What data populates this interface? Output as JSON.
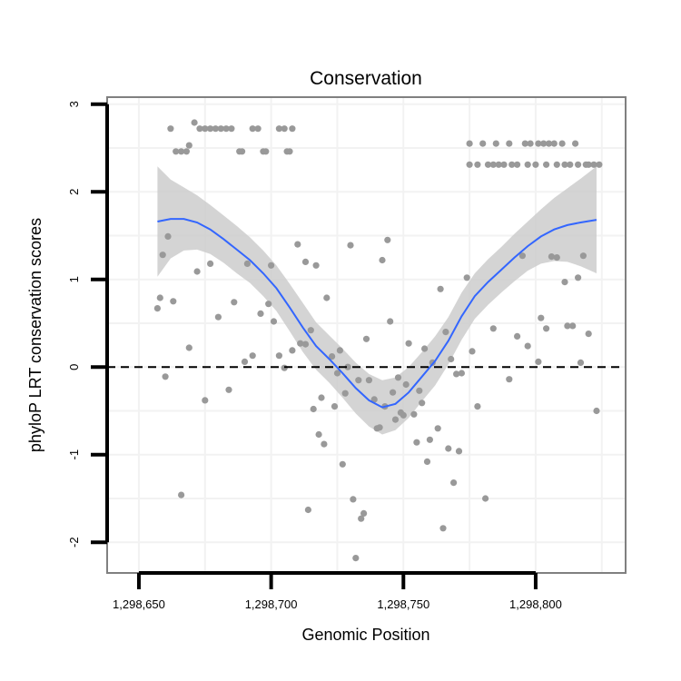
{
  "chart_data": {
    "type": "scatter",
    "title": "Conservation",
    "xlabel": "Genomic Position",
    "ylabel": "phyloP LRT conservation scores",
    "xlim": [
      1298638,
      1298834
    ],
    "ylim": [
      -2.35,
      3.08
    ],
    "x_ticks": [
      1298650,
      1298700,
      1298750,
      1298800
    ],
    "x_tick_labels": [
      "1,298,650",
      "1,298,700",
      "1,298,750",
      "1,298,800"
    ],
    "y_ticks": [
      -2,
      -1,
      0,
      1,
      2,
      3
    ],
    "y_tick_labels": [
      "-2",
      "-1",
      "0",
      "1",
      "2",
      "3"
    ],
    "grid": true,
    "reference_line": {
      "y": 0,
      "style": "dashed"
    },
    "colors": {
      "points": "#999999",
      "smooth_line": "#3366ff",
      "confidence_band": "#cccccc",
      "panel_border": "#808080",
      "grid": "#f2f2f2"
    },
    "points": [
      [
        1298662,
        2.72
      ],
      [
        1298664,
        2.46
      ],
      [
        1298666,
        2.46
      ],
      [
        1298668,
        2.46
      ],
      [
        1298669,
        2.53
      ],
      [
        1298671,
        2.79
      ],
      [
        1298673,
        2.72
      ],
      [
        1298675,
        2.72
      ],
      [
        1298677,
        2.72
      ],
      [
        1298679,
        2.72
      ],
      [
        1298681,
        2.72
      ],
      [
        1298683,
        2.72
      ],
      [
        1298685,
        2.72
      ],
      [
        1298688,
        2.46
      ],
      [
        1298689,
        2.46
      ],
      [
        1298693,
        2.72
      ],
      [
        1298695,
        2.72
      ],
      [
        1298697,
        2.46
      ],
      [
        1298698,
        2.46
      ],
      [
        1298703,
        2.72
      ],
      [
        1298705,
        2.72
      ],
      [
        1298706,
        2.46
      ],
      [
        1298707,
        2.46
      ],
      [
        1298708,
        2.72
      ],
      [
        1298775,
        2.55
      ],
      [
        1298775,
        2.31
      ],
      [
        1298778,
        2.31
      ],
      [
        1298780,
        2.55
      ],
      [
        1298782,
        2.31
      ],
      [
        1298784,
        2.31
      ],
      [
        1298785,
        2.55
      ],
      [
        1298786,
        2.31
      ],
      [
        1298788,
        2.31
      ],
      [
        1298790,
        2.55
      ],
      [
        1298791,
        2.31
      ],
      [
        1298793,
        2.31
      ],
      [
        1298796,
        2.55
      ],
      [
        1298797,
        2.31
      ],
      [
        1298798,
        2.55
      ],
      [
        1298800,
        2.31
      ],
      [
        1298801,
        2.55
      ],
      [
        1298803,
        2.55
      ],
      [
        1298804,
        2.31
      ],
      [
        1298805,
        2.55
      ],
      [
        1298807,
        2.55
      ],
      [
        1298808,
        2.31
      ],
      [
        1298810,
        2.55
      ],
      [
        1298811,
        2.31
      ],
      [
        1298813,
        2.31
      ],
      [
        1298815,
        2.55
      ],
      [
        1298816,
        2.31
      ],
      [
        1298819,
        2.31
      ],
      [
        1298820,
        2.31
      ],
      [
        1298822,
        2.31
      ],
      [
        1298824,
        2.31
      ],
      [
        1298657,
        0.67
      ],
      [
        1298658,
        0.79
      ],
      [
        1298659,
        1.28
      ],
      [
        1298660,
        -0.11
      ],
      [
        1298661,
        1.49
      ],
      [
        1298663,
        0.75
      ],
      [
        1298666,
        -1.46
      ],
      [
        1298669,
        0.22
      ],
      [
        1298672,
        1.09
      ],
      [
        1298675,
        -0.38
      ],
      [
        1298677,
        1.18
      ],
      [
        1298680,
        0.57
      ],
      [
        1298684,
        -0.26
      ],
      [
        1298686,
        0.74
      ],
      [
        1298690,
        0.06
      ],
      [
        1298691,
        1.18
      ],
      [
        1298693,
        0.13
      ],
      [
        1298696,
        0.61
      ],
      [
        1298699,
        0.72
      ],
      [
        1298700,
        1.16
      ],
      [
        1298701,
        0.52
      ],
      [
        1298703,
        0.13
      ],
      [
        1298705,
        -0.01
      ],
      [
        1298708,
        0.19
      ],
      [
        1298710,
        1.4
      ],
      [
        1298711,
        0.27
      ],
      [
        1298713,
        0.26
      ],
      [
        1298713,
        1.2
      ],
      [
        1298714,
        -1.63
      ],
      [
        1298715,
        0.42
      ],
      [
        1298716,
        -0.48
      ],
      [
        1298717,
        1.16
      ],
      [
        1298718,
        -0.77
      ],
      [
        1298719,
        -0.35
      ],
      [
        1298720,
        -0.88
      ],
      [
        1298721,
        0.79
      ],
      [
        1298723,
        0.12
      ],
      [
        1298724,
        -0.45
      ],
      [
        1298725,
        -0.07
      ],
      [
        1298726,
        0.19
      ],
      [
        1298727,
        -1.11
      ],
      [
        1298728,
        -0.3
      ],
      [
        1298729,
        0.0
      ],
      [
        1298730,
        1.39
      ],
      [
        1298731,
        -1.51
      ],
      [
        1298732,
        -2.18
      ],
      [
        1298733,
        -0.15
      ],
      [
        1298734,
        -1.73
      ],
      [
        1298735,
        -1.67
      ],
      [
        1298736,
        0.32
      ],
      [
        1298737,
        -0.15
      ],
      [
        1298739,
        -0.37
      ],
      [
        1298740,
        -0.7
      ],
      [
        1298741,
        -0.69
      ],
      [
        1298742,
        1.22
      ],
      [
        1298743,
        -0.45
      ],
      [
        1298744,
        1.45
      ],
      [
        1298745,
        0.52
      ],
      [
        1298746,
        -0.29
      ],
      [
        1298747,
        -0.6
      ],
      [
        1298748,
        -0.12
      ],
      [
        1298749,
        -0.52
      ],
      [
        1298750,
        -0.55
      ],
      [
        1298751,
        -0.2
      ],
      [
        1298752,
        0.27
      ],
      [
        1298754,
        -0.54
      ],
      [
        1298755,
        -0.86
      ],
      [
        1298756,
        -0.27
      ],
      [
        1298757,
        -0.41
      ],
      [
        1298758,
        0.21
      ],
      [
        1298759,
        -1.08
      ],
      [
        1298760,
        -0.83
      ],
      [
        1298761,
        0.05
      ],
      [
        1298763,
        -0.7
      ],
      [
        1298764,
        0.89
      ],
      [
        1298765,
        -1.84
      ],
      [
        1298766,
        0.4
      ],
      [
        1298767,
        -0.93
      ],
      [
        1298768,
        0.09
      ],
      [
        1298769,
        -1.32
      ],
      [
        1298770,
        -0.08
      ],
      [
        1298771,
        -0.96
      ],
      [
        1298772,
        -0.07
      ],
      [
        1298774,
        1.02
      ],
      [
        1298776,
        0.18
      ],
      [
        1298778,
        -0.45
      ],
      [
        1298781,
        -1.5
      ],
      [
        1298784,
        0.44
      ],
      [
        1298790,
        -0.14
      ],
      [
        1298793,
        0.35
      ],
      [
        1298795,
        1.27
      ],
      [
        1298797,
        0.24
      ],
      [
        1298801,
        0.06
      ],
      [
        1298802,
        0.56
      ],
      [
        1298804,
        0.44
      ],
      [
        1298806,
        1.26
      ],
      [
        1298808,
        1.25
      ],
      [
        1298811,
        0.97
      ],
      [
        1298812,
        0.47
      ],
      [
        1298814,
        0.47
      ],
      [
        1298816,
        1.02
      ],
      [
        1298817,
        0.05
      ],
      [
        1298818,
        1.27
      ],
      [
        1298820,
        0.38
      ],
      [
        1298823,
        -0.5
      ]
    ],
    "smooth_line": [
      [
        1298657,
        1.66
      ],
      [
        1298662,
        1.69
      ],
      [
        1298667,
        1.69
      ],
      [
        1298672,
        1.65
      ],
      [
        1298677,
        1.57
      ],
      [
        1298682,
        1.46
      ],
      [
        1298687,
        1.34
      ],
      [
        1298692,
        1.22
      ],
      [
        1298697,
        1.07
      ],
      [
        1298702,
        0.9
      ],
      [
        1298707,
        0.68
      ],
      [
        1298712,
        0.45
      ],
      [
        1298717,
        0.24
      ],
      [
        1298722,
        0.09
      ],
      [
        1298727,
        -0.07
      ],
      [
        1298732,
        -0.24
      ],
      [
        1298737,
        -0.38
      ],
      [
        1298742,
        -0.46
      ],
      [
        1298747,
        -0.42
      ],
      [
        1298752,
        -0.29
      ],
      [
        1298757,
        -0.11
      ],
      [
        1298762,
        0.07
      ],
      [
        1298767,
        0.3
      ],
      [
        1298772,
        0.58
      ],
      [
        1298777,
        0.81
      ],
      [
        1298782,
        0.97
      ],
      [
        1298787,
        1.11
      ],
      [
        1298792,
        1.25
      ],
      [
        1298797,
        1.38
      ],
      [
        1298802,
        1.49
      ],
      [
        1298807,
        1.57
      ],
      [
        1298812,
        1.62
      ],
      [
        1298817,
        1.65
      ],
      [
        1298823,
        1.68
      ]
    ],
    "confidence_band": [
      [
        1298657,
        1.03,
        2.29
      ],
      [
        1298662,
        1.24,
        2.14
      ],
      [
        1298667,
        1.33,
        2.05
      ],
      [
        1298672,
        1.34,
        1.96
      ],
      [
        1298677,
        1.29,
        1.85
      ],
      [
        1298682,
        1.19,
        1.73
      ],
      [
        1298687,
        1.07,
        1.61
      ],
      [
        1298692,
        0.96,
        1.48
      ],
      [
        1298697,
        0.81,
        1.33
      ],
      [
        1298702,
        0.64,
        1.16
      ],
      [
        1298707,
        0.41,
        0.95
      ],
      [
        1298712,
        0.17,
        0.73
      ],
      [
        1298717,
        -0.03,
        0.51
      ],
      [
        1298722,
        -0.18,
        0.36
      ],
      [
        1298727,
        -0.35,
        0.21
      ],
      [
        1298732,
        -0.53,
        0.05
      ],
      [
        1298737,
        -0.68,
        -0.08
      ],
      [
        1298742,
        -0.77,
        -0.15
      ],
      [
        1298747,
        -0.72,
        -0.12
      ],
      [
        1298752,
        -0.58,
        0.0
      ],
      [
        1298757,
        -0.39,
        0.17
      ],
      [
        1298762,
        -0.21,
        0.35
      ],
      [
        1298767,
        0.03,
        0.57
      ],
      [
        1298772,
        0.31,
        0.85
      ],
      [
        1298777,
        0.55,
        1.07
      ],
      [
        1298782,
        0.71,
        1.23
      ],
      [
        1298787,
        0.85,
        1.37
      ],
      [
        1298792,
        0.98,
        1.52
      ],
      [
        1298797,
        1.1,
        1.66
      ],
      [
        1298802,
        1.18,
        1.8
      ],
      [
        1298807,
        1.21,
        1.93
      ],
      [
        1298812,
        1.2,
        2.04
      ],
      [
        1298817,
        1.15,
        2.15
      ],
      [
        1298823,
        1.07,
        2.29
      ]
    ]
  }
}
